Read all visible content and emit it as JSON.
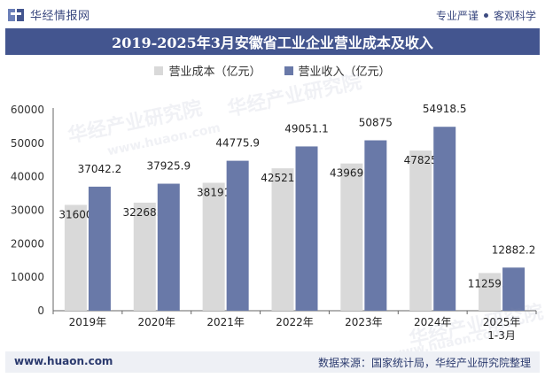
{
  "header": {
    "brand_name": "华经情报网",
    "slogan_left": "专业严谨",
    "slogan_right": "客观科学"
  },
  "title": "2019-2025年3月安徽省工业企业营业成本及收入",
  "footer": {
    "website": "www.huaon.com",
    "source": "数据来源：国家统计局，华经产业研究院整理"
  },
  "watermarks": [
    "华经产业研究院",
    "www.huaon.com",
    "华经产业研究院",
    "华经产业研究院",
    "www.huaon.com"
  ],
  "colors": {
    "cost": "#d9d9d9",
    "revenue": "#6979a8",
    "title_bg": "#43558f",
    "brand": "#3c4a80"
  },
  "chart_data": {
    "type": "bar",
    "categories": [
      "2019年",
      "2020年",
      "2021年",
      "2022年",
      "2023年",
      "2024年",
      "2025年\n1-3月"
    ],
    "series": [
      {
        "name": "营业成本（亿元）",
        "values": [
          31600,
          32268.4,
          38191,
          42521.9,
          43969.5,
          47825,
          11259.4
        ],
        "labels": [
          "31600",
          "32268.4",
          "38191",
          "42521.9",
          "43969.5",
          "47825",
          "11259.4"
        ]
      },
      {
        "name": "营业收入（亿元）",
        "values": [
          37042.2,
          37925.9,
          44775.9,
          49051.1,
          50875,
          54918.5,
          12882.2
        ],
        "labels": [
          "37042.2",
          "37925.9",
          "44775.9",
          "49051.1",
          "50875",
          "54918.5",
          "12882.2"
        ]
      }
    ],
    "ylim": [
      0,
      60000
    ],
    "yticks": [
      0,
      10000,
      20000,
      30000,
      40000,
      50000,
      60000
    ],
    "legend_position": "top"
  }
}
